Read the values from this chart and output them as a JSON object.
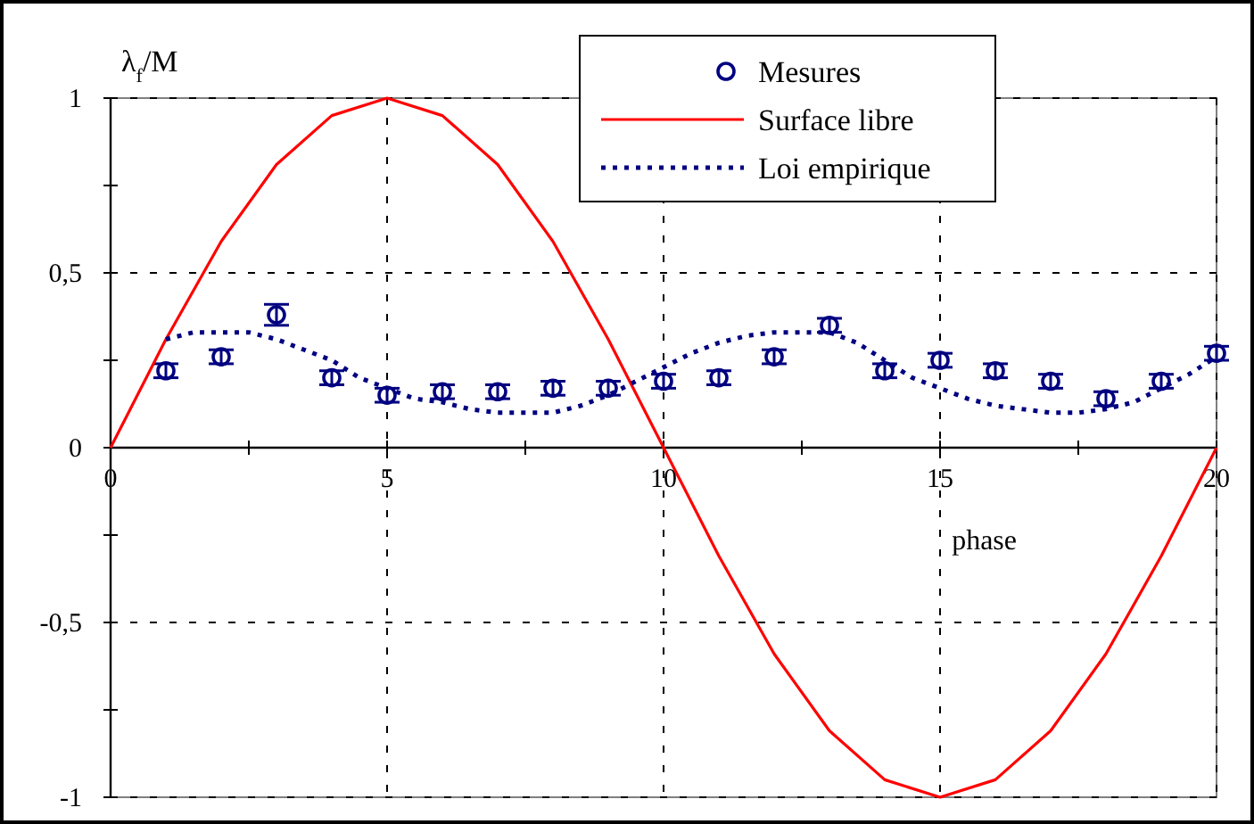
{
  "chart_data": {
    "type": "line",
    "xlabel": "phase",
    "ylabel": "λ$_{f}$/M",
    "xlim": [
      0,
      20
    ],
    "ylim": [
      -1,
      1
    ],
    "xticks": [
      0,
      {
        "value": 2.5,
        "label": null
      },
      5,
      {
        "value": 7.5,
        "label": null
      },
      10,
      {
        "value": 12.5,
        "label": null
      },
      15,
      {
        "value": 17.5,
        "label": null
      },
      20
    ],
    "yticks": [
      {
        "value": -1,
        "label": "-1"
      },
      {
        "value": -0.75,
        "label": null
      },
      {
        "value": -0.5,
        "label": "-0,5"
      },
      {
        "value": -0.25,
        "label": null
      },
      0,
      {
        "value": 0.25,
        "label": null
      },
      {
        "value": 0.5,
        "label": "0,5"
      },
      {
        "value": 0.75,
        "label": null
      },
      1
    ],
    "grid": true,
    "legend": "top",
    "series": [
      {
        "name": "Mesures",
        "type": "scatter",
        "marker": "circle",
        "color": "#000080",
        "x": [
          1,
          2,
          3,
          4,
          5,
          6,
          7,
          8,
          9,
          10,
          11,
          12,
          13,
          14,
          15,
          16,
          17,
          18,
          19,
          20
        ],
        "values": [
          0.22,
          0.26,
          0.38,
          0.2,
          0.15,
          0.16,
          0.16,
          0.17,
          0.17,
          0.19,
          0.2,
          0.26,
          0.35,
          0.22,
          0.25,
          0.22,
          0.19,
          0.14,
          0.19,
          0.27
        ],
        "errors": [
          0.02,
          0.02,
          0.03,
          0.02,
          0.02,
          0.02,
          0.02,
          0.02,
          0.02,
          0.02,
          0.02,
          0.02,
          0.02,
          0.02,
          0.02,
          0.02,
          0.02,
          0.02,
          0.02,
          0.02
        ]
      },
      {
        "name": "Surface libre",
        "line_style": "solid",
        "color": "#ff0000",
        "x": [
          0,
          1,
          2,
          3,
          4,
          5,
          6,
          7,
          8,
          9,
          10,
          11,
          12,
          13,
          14,
          15,
          16,
          17,
          18,
          19,
          20
        ],
        "values": [
          0,
          0.31,
          0.59,
          0.81,
          0.95,
          1,
          0.95,
          0.81,
          0.59,
          0.31,
          0,
          -0.31,
          -0.59,
          -0.81,
          -0.95,
          -1,
          -0.95,
          -0.81,
          -0.59,
          -0.31,
          0
        ]
      },
      {
        "name": "Loi empirique",
        "line_style": "dotted",
        "color": "#000080",
        "x": [
          1,
          1.5,
          2,
          2.5,
          3,
          3.5,
          4,
          4.5,
          5,
          5.5,
          6,
          6.5,
          7,
          7.5,
          8,
          8.5,
          9,
          9.5,
          10,
          10.5,
          11,
          11.5,
          12,
          12.5,
          13,
          13.5,
          14,
          14.5,
          15,
          15.5,
          16,
          16.5,
          17,
          17.5,
          18,
          18.5,
          19,
          19.5,
          20
        ],
        "values": [
          0.31,
          0.33,
          0.33,
          0.33,
          0.31,
          0.28,
          0.25,
          0.2,
          0.17,
          0.14,
          0.13,
          0.11,
          0.1,
          0.1,
          0.1,
          0.12,
          0.15,
          0.19,
          0.23,
          0.27,
          0.3,
          0.32,
          0.33,
          0.33,
          0.33,
          0.3,
          0.25,
          0.2,
          0.17,
          0.14,
          0.12,
          0.11,
          0.1,
          0.1,
          0.11,
          0.13,
          0.17,
          0.21,
          0.26
        ]
      }
    ]
  }
}
